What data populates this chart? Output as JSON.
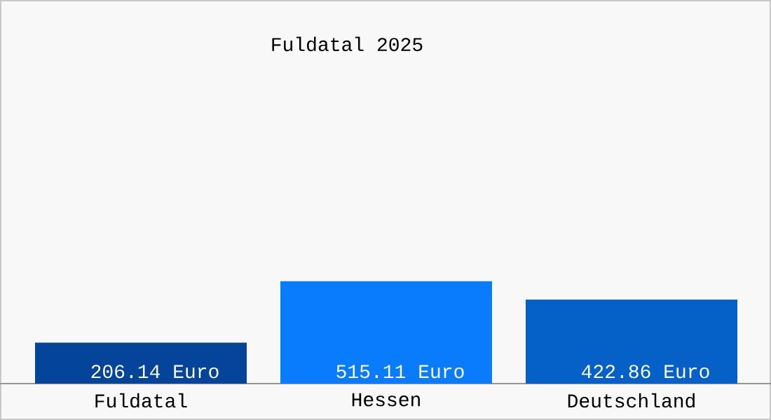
{
  "chart_data": {
    "type": "bar",
    "title": "Fuldatal 2025",
    "categories": [
      "Fuldatal",
      "Hessen",
      "Deutschland"
    ],
    "values": [
      206.14,
      515.11,
      422.86
    ],
    "colors": [
      "#04449a",
      "#087cfc",
      "#0560c8"
    ],
    "value_labels": [
      "206.14 Euro",
      "515.11 Euro",
      "422.86 Euro"
    ]
  }
}
